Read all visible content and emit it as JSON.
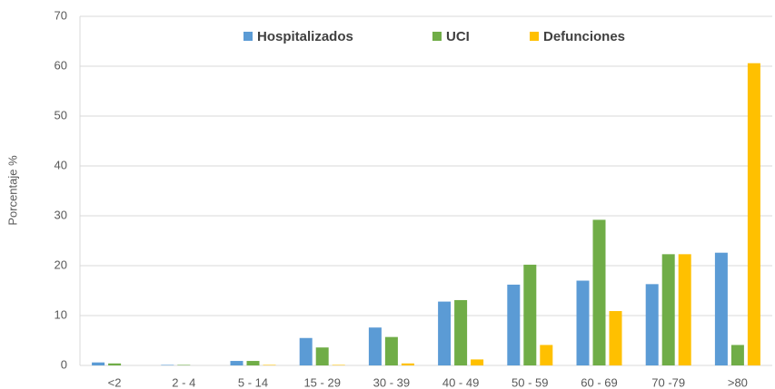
{
  "chart_data": {
    "type": "bar",
    "y_label": "Porcentaje %",
    "categories": [
      "<2",
      "2 - 4",
      "5 - 14",
      "15 - 29",
      "30 - 39",
      "40 - 49",
      "50 - 59",
      "60 - 69",
      "70 -79",
      ">80"
    ],
    "series": [
      {
        "name": "Hospitalizados",
        "color": "#5b9bd5",
        "values": [
          0.6,
          0.1,
          0.9,
          5.5,
          7.6,
          12.8,
          16.2,
          17.0,
          16.3,
          22.6
        ]
      },
      {
        "name": "UCI",
        "color": "#70ad47",
        "values": [
          0.4,
          0.1,
          0.9,
          3.6,
          5.7,
          13.1,
          20.2,
          29.2,
          22.3,
          4.1
        ]
      },
      {
        "name": "Defunciones",
        "color": "#ffc000",
        "values": [
          0.0,
          0.0,
          0.1,
          0.1,
          0.4,
          1.2,
          4.1,
          10.9,
          22.3,
          60.6
        ]
      }
    ],
    "ylim": [
      0,
      70
    ],
    "yticks": [
      0,
      10,
      20,
      30,
      40,
      50,
      60,
      70
    ],
    "grid": true
  }
}
